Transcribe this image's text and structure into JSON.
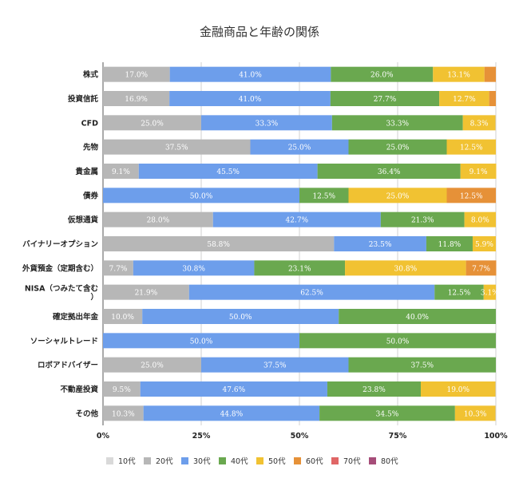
{
  "chart_data": {
    "type": "bar",
    "orientation": "horizontal",
    "stacked": "percent",
    "title": "金融商品と年齢の関係",
    "categories": [
      "株式",
      "投資信託",
      "CFD",
      "先物",
      "貴金属",
      "債券",
      "仮想通貨",
      "バイナリーオプション",
      "外貨預金（定期含む）",
      "NISA（つみたて含む）",
      "確定拠出年金",
      "ソーシャルトレード",
      "ロボアドバイザー",
      "不動産投資",
      "その他"
    ],
    "category_lines": [
      [
        "株式"
      ],
      [
        "投資信託"
      ],
      [
        "CFD"
      ],
      [
        "先物"
      ],
      [
        "貴金属"
      ],
      [
        "債券"
      ],
      [
        "仮想通貨"
      ],
      [
        "バイナリーオプション"
      ],
      [
        "外貨預金（定期含む）"
      ],
      [
        "NISA（つみたて含む",
        "）"
      ],
      [
        "確定拠出年金"
      ],
      [
        "ソーシャルトレード"
      ],
      [
        "ロボアドバイザー"
      ],
      [
        "不動産投資"
      ],
      [
        "その他"
      ]
    ],
    "series": [
      {
        "name": "10代",
        "color": "#d9d9d9",
        "values": [
          0,
          0,
          0,
          0,
          0,
          0,
          0,
          0,
          0,
          0,
          0,
          0,
          0,
          0,
          0
        ]
      },
      {
        "name": "20代",
        "color": "#b7b7b7",
        "values": [
          17.0,
          16.9,
          25.0,
          37.5,
          9.1,
          0,
          28.0,
          58.8,
          7.7,
          21.9,
          10.0,
          0,
          25.0,
          9.5,
          10.3
        ]
      },
      {
        "name": "30代",
        "color": "#6d9eeb",
        "values": [
          41.0,
          41.0,
          33.3,
          25.0,
          45.5,
          50.0,
          42.7,
          23.5,
          30.8,
          62.5,
          50.0,
          50.0,
          37.5,
          47.6,
          44.8
        ]
      },
      {
        "name": "40代",
        "color": "#6aa84f",
        "values": [
          26.0,
          27.7,
          33.3,
          25.0,
          36.4,
          12.5,
          21.3,
          11.8,
          23.1,
          12.5,
          40.0,
          50.0,
          37.5,
          23.8,
          34.5
        ]
      },
      {
        "name": "50代",
        "color": "#f1c232",
        "values": [
          13.1,
          12.7,
          8.3,
          12.5,
          9.1,
          25.0,
          8.0,
          5.9,
          30.8,
          3.1,
          0,
          0,
          0,
          19.0,
          10.3
        ]
      },
      {
        "name": "60代",
        "color": "#e69138",
        "values": [
          2.9,
          1.7,
          0,
          0,
          0,
          12.5,
          0,
          0,
          7.7,
          0,
          0,
          0,
          0,
          0,
          0
        ]
      },
      {
        "name": "70代",
        "color": "#e06666",
        "values": [
          0,
          0,
          0,
          0,
          0,
          0,
          0,
          0,
          0,
          0,
          0,
          0,
          0,
          0,
          0
        ]
      },
      {
        "name": "80代",
        "color": "#a64d79",
        "values": [
          0,
          0,
          0,
          0,
          0,
          0,
          0,
          0,
          0,
          0,
          0,
          0,
          0,
          0,
          0
        ]
      }
    ],
    "data_labels": [
      [
        null,
        "17.0%",
        "41.0%",
        "26.0%",
        "13.1%",
        null,
        null,
        null
      ],
      [
        null,
        "16.9%",
        "41.0%",
        "27.7%",
        "12.7%",
        null,
        null,
        null
      ],
      [
        null,
        "25.0%",
        "33.3%",
        "33.3%",
        "8.3%",
        null,
        null,
        null
      ],
      [
        null,
        "37.5%",
        "25.0%",
        "25.0%",
        "12.5%",
        null,
        null,
        null
      ],
      [
        null,
        "9.1%",
        "45.5%",
        "36.4%",
        "9.1%",
        null,
        null,
        null
      ],
      [
        null,
        null,
        "50.0%",
        "12.5%",
        "25.0%",
        "12.5%",
        null,
        null
      ],
      [
        null,
        "28.0%",
        "42.7%",
        "21.3%",
        "8.0%",
        null,
        null,
        null
      ],
      [
        null,
        "58.8%",
        "23.5%",
        "11.8%",
        "5.9%",
        null,
        null,
        null
      ],
      [
        null,
        "7.7%",
        "30.8%",
        "23.1%",
        "30.8%",
        "7.7%",
        null,
        null
      ],
      [
        null,
        "21.9%",
        "62.5%",
        "12.5%",
        "3.1%",
        null,
        null,
        null
      ],
      [
        null,
        "10.0%",
        "50.0%",
        "40.0%",
        null,
        null,
        null,
        null
      ],
      [
        null,
        null,
        "50.0%",
        "50.0%",
        null,
        null,
        null,
        null
      ],
      [
        null,
        "25.0%",
        "37.5%",
        "37.5%",
        null,
        null,
        null,
        null
      ],
      [
        null,
        "9.5%",
        "47.6%",
        "23.8%",
        "19.0%",
        null,
        null,
        null
      ],
      [
        null,
        "10.3%",
        "44.8%",
        "34.5%",
        "10.3%",
        null,
        null,
        null
      ]
    ],
    "x_ticks": [
      "0%",
      "25%",
      "50%",
      "75%",
      "100%"
    ],
    "xlim": [
      0,
      100
    ],
    "grid": true,
    "legend_position": "bottom"
  }
}
